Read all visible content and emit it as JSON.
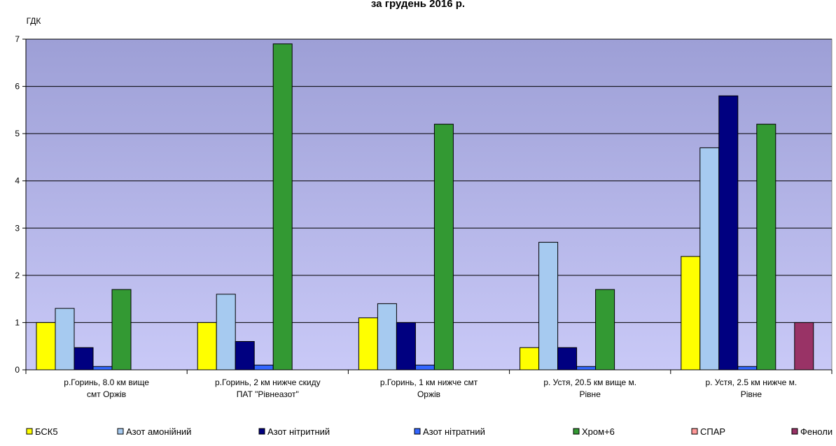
{
  "chart_data": {
    "type": "bar",
    "title": "за грудень 2016 р.",
    "ylabel": "ГДК",
    "ylim": [
      0,
      7
    ],
    "yticks": [
      "0",
      "1",
      "2",
      "3",
      "4",
      "5",
      "6",
      "7"
    ],
    "grid": true,
    "legend_position": "bottom",
    "categories": [
      [
        "р.Горинь, 8.0 км вище",
        "смт Оржів"
      ],
      [
        "р.Горинь, 2 км нижче скиду",
        "ПАТ \"Рівнеазот\""
      ],
      [
        "р.Горинь, 1 км нижче смт",
        "Оржів"
      ],
      [
        "р. Устя, 20.5 км вище м.",
        "Рівне"
      ],
      [
        "р. Устя, 2.5 км нижче м.",
        "Рівне"
      ]
    ],
    "series": [
      {
        "name": "БСК5",
        "color": "#ffff00",
        "values": [
          1.0,
          1.0,
          1.1,
          0.47,
          2.4
        ]
      },
      {
        "name": "Азот амонійний",
        "color": "#a6caf0",
        "values": [
          1.3,
          1.6,
          1.4,
          2.7,
          4.7
        ]
      },
      {
        "name": "Азот нітритний",
        "color": "#000080",
        "values": [
          0.47,
          0.6,
          1.0,
          0.47,
          5.8
        ]
      },
      {
        "name": "Азот нітратний",
        "color": "#3366ff",
        "values": [
          0.07,
          0.1,
          0.1,
          0.07,
          0.07
        ]
      },
      {
        "name": "Хром+6",
        "color": "#339933",
        "values": [
          1.7,
          6.9,
          5.2,
          1.7,
          5.2
        ]
      },
      {
        "name": "СПАР",
        "color": "#ff9999",
        "values": [
          0,
          0,
          0,
          0,
          0
        ]
      },
      {
        "name": "Феноли",
        "color": "#993366",
        "values": [
          0,
          0,
          0,
          0,
          1.0
        ]
      }
    ]
  }
}
